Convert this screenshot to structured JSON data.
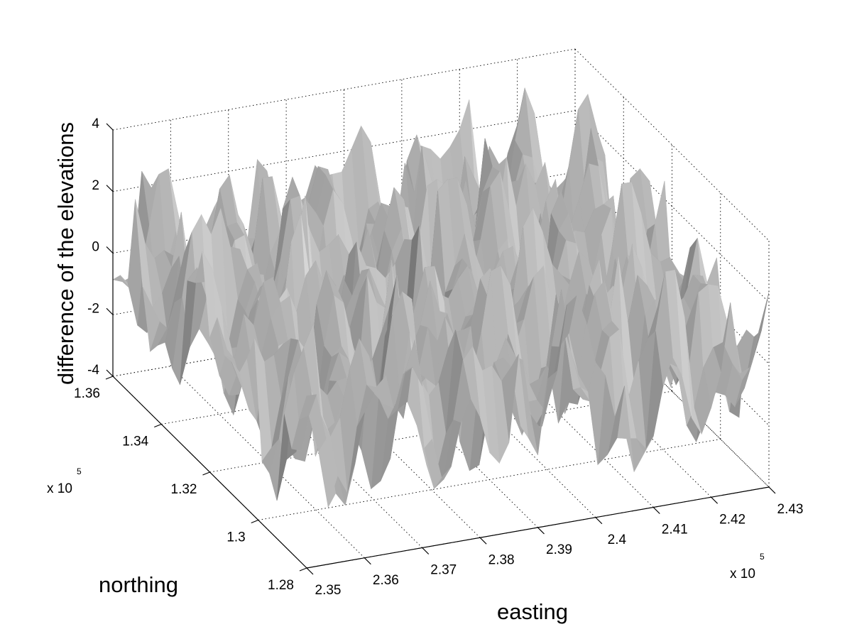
{
  "chart_data": {
    "type": "surface",
    "title": "",
    "xlabel": "easting",
    "ylabel": "northing",
    "zlabel": "difference of the elevations",
    "x_exponent_label": "x 10",
    "x_exponent_power": "5",
    "y_exponent_label": "x 10",
    "y_exponent_power": "5",
    "x_ticks": [
      "2.35",
      "2.36",
      "2.37",
      "2.38",
      "2.39",
      "2.4",
      "2.41",
      "2.42",
      "2.43"
    ],
    "y_ticks": [
      "1.28",
      "1.3",
      "1.32",
      "1.34",
      "1.36"
    ],
    "z_ticks": [
      "-4",
      "-2",
      "0",
      "2",
      "4"
    ],
    "xlim": [
      2.35,
      2.43
    ],
    "ylim": [
      1.28,
      1.36
    ],
    "zlim": [
      -4,
      4
    ],
    "x_scale": 100000,
    "y_scale": 100000,
    "grid": true,
    "surface_shading": "gray, lit",
    "surface_color": "#a8a8a8",
    "shadow_color": "#5e5e5e",
    "highlight_color": "#d6d6d6",
    "description_values": {
      "z_range_observed": [
        -3.3,
        3.3
      ]
    }
  }
}
